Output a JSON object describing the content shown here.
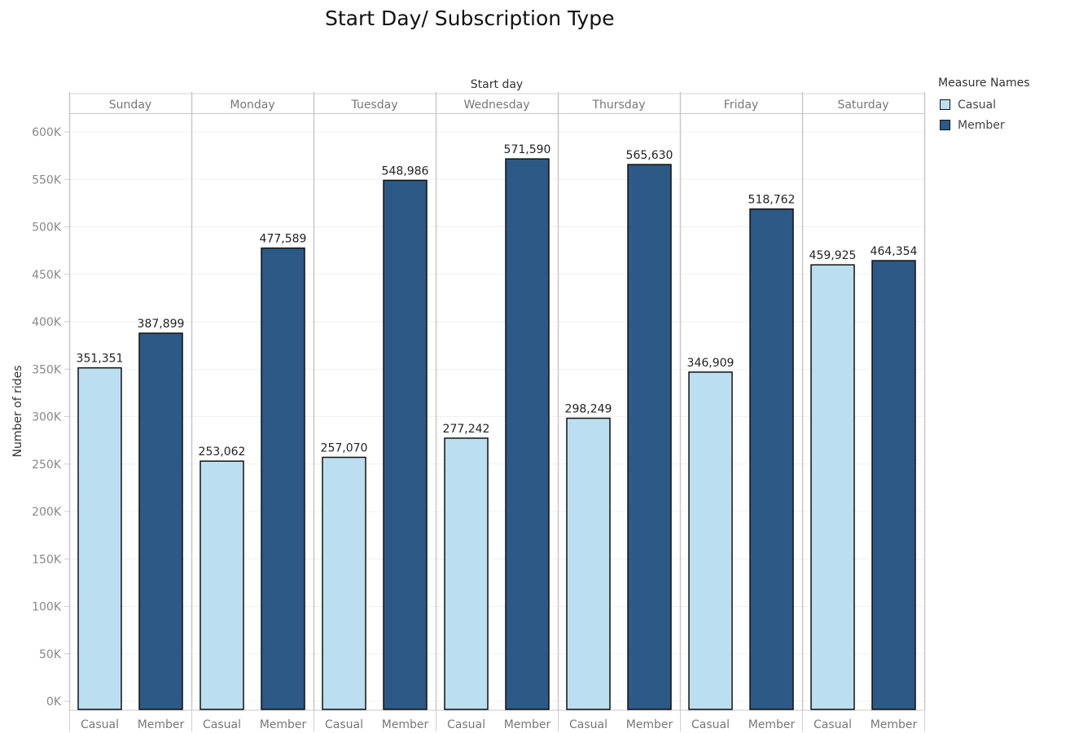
{
  "chart_data": {
    "type": "bar",
    "title": "Start Day/ Subscription Type",
    "column_header": "Start day",
    "ylabel": "Number of rides",
    "ylim": [
      0,
      600000
    ],
    "yticks": [
      "0K",
      "50K",
      "100K",
      "150K",
      "200K",
      "250K",
      "300K",
      "350K",
      "400K",
      "450K",
      "500K",
      "550K",
      "600K"
    ],
    "legend_title": "Measure Names",
    "legend_position": "top-right",
    "grid": true,
    "categories": [
      "Sunday",
      "Monday",
      "Tuesday",
      "Wednesday",
      "Thursday",
      "Friday",
      "Saturday"
    ],
    "sub_labels": [
      "Casual",
      "Member"
    ],
    "series": [
      {
        "name": "Casual",
        "color": "#bbdff0",
        "values": [
          351351,
          253062,
          257070,
          277242,
          298249,
          346909,
          459925
        ],
        "labels": [
          "351,351",
          "253,062",
          "257,070",
          "277,242",
          "298,249",
          "346,909",
          "459,925"
        ]
      },
      {
        "name": "Member",
        "color": "#2c5985",
        "values": [
          387899,
          477589,
          548986,
          571590,
          565630,
          518762,
          464354
        ],
        "labels": [
          "387,899",
          "477,589",
          "548,986",
          "571,590",
          "565,630",
          "518,762",
          "464,354"
        ]
      }
    ]
  }
}
